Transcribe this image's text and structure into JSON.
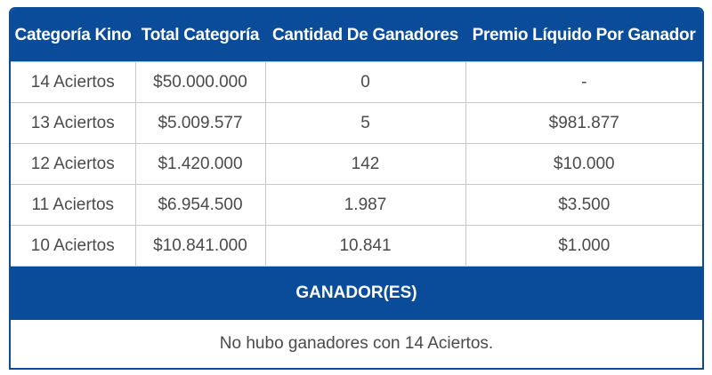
{
  "table": {
    "headers": [
      "Categoría Kino",
      "Total Categoría",
      "Cantidad De Ganadores",
      "Premio Líquido Por Ganador"
    ],
    "rows": [
      {
        "categoria": "14 Aciertos",
        "total": "$50.000.000",
        "ganadores": "0",
        "premio": "-"
      },
      {
        "categoria": "13 Aciertos",
        "total": "$5.009.577",
        "ganadores": "5",
        "premio": "$981.877"
      },
      {
        "categoria": "12 Aciertos",
        "total": "$1.420.000",
        "ganadores": "142",
        "premio": "$10.000"
      },
      {
        "categoria": "11 Aciertos",
        "total": "$6.954.500",
        "ganadores": "1.987",
        "premio": "$3.500"
      },
      {
        "categoria": "10 Aciertos",
        "total": "$10.841.000",
        "ganadores": "10.841",
        "premio": "$1.000"
      }
    ]
  },
  "winners": {
    "title": "GANADOR(ES)",
    "message": "No hubo ganadores con 14 Aciertos."
  },
  "colors": {
    "header_bg": "#0a4c9a",
    "header_text": "#ffffff",
    "cell_text": "#4a4a4a",
    "grid": "#c8c8c8"
  }
}
